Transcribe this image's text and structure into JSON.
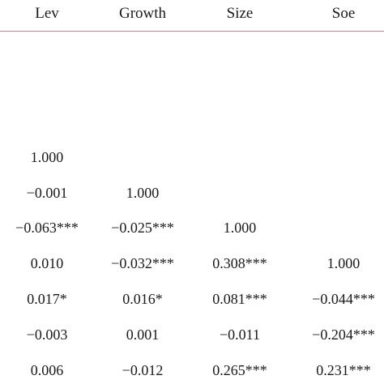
{
  "table": {
    "columns": [
      "Lev",
      "Growth",
      "Size",
      "Soe"
    ],
    "rows": [
      [
        "1.000",
        "",
        "",
        ""
      ],
      [
        "−0.001",
        "1.000",
        "",
        ""
      ],
      [
        "−0.063***",
        "−0.025***",
        "1.000",
        ""
      ],
      [
        "0.010",
        "−0.032***",
        "0.308***",
        "1.000"
      ],
      [
        "0.017*",
        "0.016*",
        "0.081***",
        "−0.044***"
      ],
      [
        "−0.003",
        "0.001",
        "−0.011",
        "−0.204***"
      ],
      [
        "0.006",
        "−0.012",
        "0.265***",
        "0.231***"
      ]
    ]
  },
  "colors": {
    "rule": "#c7868f",
    "text": "#1a1a1a"
  }
}
